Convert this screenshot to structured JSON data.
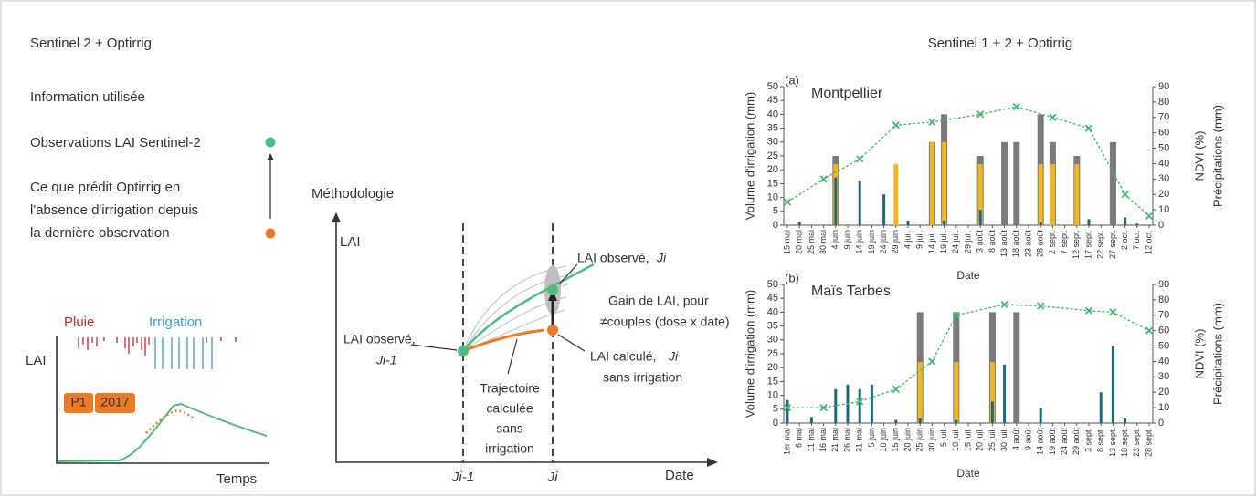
{
  "left": {
    "title": "Sentinel 2 + Optirrig",
    "info": "Information utilisée",
    "obs": "Observations LAI Sentinel-2",
    "pred": [
      "Ce que prédit Optirrig en",
      "l'absence d'irrigation depuis",
      "la dernière observation"
    ],
    "mini": {
      "y_label": "LAI",
      "rain": "Pluie",
      "irrigation": "Irrigation",
      "tags": [
        "P1",
        "2017"
      ],
      "x_label": "Temps"
    }
  },
  "method": {
    "title": "Méthodologie",
    "y_label": "LAI",
    "x_label": "Date",
    "tick_prev": "Ji-1",
    "tick_cur": "Ji",
    "obs_cur": "LAI observé,",
    "obs_cur_var": "Ji",
    "gain": [
      "Gain de LAI, pour",
      "≠couples (dose x date)"
    ],
    "obs_prev": "LAI observé,",
    "obs_prev_var": "Ji-1",
    "traj": [
      "Trajectoire",
      "calculée",
      "sans",
      "irrigation"
    ],
    "calc": "LAI calculé,",
    "calc_var": "Ji",
    "calc2": "sans irrigation"
  },
  "right_title": "Sentinel 1 + 2 + Optirrig",
  "chart_data": [
    {
      "type": "bar",
      "label": "(a)",
      "title": "Montpellier",
      "xlabel": "Date",
      "ylabel": "Volume d'irrigation (mm)",
      "y2label": [
        "NDVI (%)",
        "Précipitations (mm)"
      ],
      "categories": [
        "15 mai",
        "20 mai",
        "25 mai",
        "30 mai",
        "4 juin",
        "9 juin",
        "14 juin",
        "19 juin",
        "24 juin",
        "29 juin",
        "4 juil.",
        "9 juil.",
        "14 juil.",
        "19 juil.",
        "24 juil.",
        "29 juil.",
        "3 août",
        "8 août",
        "13 août",
        "18 août",
        "23 août",
        "28 août",
        "2 sept.",
        "7 sept.",
        "12 sept.",
        "17 sept.",
        "22 sept.",
        "27 sept.",
        "2 oct.",
        "7 oct.",
        "12 oct."
      ],
      "ylim": [
        0,
        50
      ],
      "yticks": [
        0,
        5,
        10,
        15,
        20,
        25,
        30,
        35,
        40,
        45,
        50
      ],
      "y2lim": [
        0,
        90
      ],
      "y2ticks": [
        0,
        10,
        20,
        30,
        40,
        50,
        60,
        70,
        80,
        90
      ],
      "series": [
        {
          "type": "bar",
          "color": "#7a7a7a",
          "x": [
            "4 juin",
            "14 juil.",
            "19 juil.",
            "3 août",
            "13 août",
            "18 août",
            "28 août",
            "2 sept.",
            "12 sept.",
            "27 sept."
          ],
          "values": [
            25,
            30,
            40,
            25,
            30,
            30,
            40,
            30,
            25,
            30
          ]
        },
        {
          "type": "bar",
          "color": "#f2b61f",
          "x": [
            "4 juin",
            "29 juin",
            "14 juil.",
            "19 juil.",
            "3 août",
            "28 août",
            "2 sept.",
            "12 sept."
          ],
          "values": [
            22,
            22,
            30,
            30,
            22,
            22,
            22,
            22
          ]
        },
        {
          "type": "bar",
          "color": "#1d6b7a",
          "axis": "y2",
          "x": [
            "20 mai",
            "4 juin",
            "14 juin",
            "24 juin",
            "4 juil.",
            "19 juil.",
            "3 août",
            "28 août",
            "17 sept.",
            "2 oct.",
            "7 oct."
          ],
          "values": [
            2,
            31,
            29,
            20,
            3,
            3,
            10,
            2,
            4,
            5,
            1
          ]
        },
        {
          "type": "line",
          "color": "#3fba74",
          "axis": "y2",
          "x": [
            "15 mai",
            "30 mai",
            "14 juin",
            "29 juin",
            "14 juil.",
            "3 août",
            "18 août",
            "2 sept.",
            "17 sept.",
            "2 oct.",
            "12 oct."
          ],
          "values": [
            15,
            30,
            43,
            65,
            67,
            72,
            77,
            70,
            63,
            20,
            6
          ]
        }
      ]
    },
    {
      "type": "bar",
      "label": "(b)",
      "title": "Maïs Tarbes",
      "xlabel": "Date",
      "ylabel": "Volume d'irrigation (mm)",
      "y2label": [
        "NDVI (%)",
        "Précipitations (mm)"
      ],
      "categories": [
        "1er mai",
        "6 mai",
        "11 mai",
        "16 mai",
        "21 mai",
        "26 mai",
        "31 mai",
        "5 juin",
        "10 juin",
        "15 juin",
        "20 juin",
        "25 juin",
        "30 juin",
        "5 juil.",
        "10 juil.",
        "15 juil.",
        "20 juil.",
        "25 juil.",
        "30 juil.",
        "4 août",
        "9 août",
        "14 août",
        "19 août",
        "24 août",
        "29 août",
        "3 sept.",
        "8 sept.",
        "13 sept.",
        "18 sept.",
        "23 sept.",
        "28 sept."
      ],
      "ylim": [
        0,
        50
      ],
      "yticks": [
        0,
        5,
        10,
        15,
        20,
        25,
        30,
        35,
        40,
        45,
        50
      ],
      "y2lim": [
        0,
        90
      ],
      "y2ticks": [
        0,
        10,
        20,
        30,
        40,
        50,
        60,
        70,
        80,
        90
      ],
      "series": [
        {
          "type": "bar",
          "color": "#7a7a7a",
          "x": [
            "25 juin",
            "10 juil.",
            "25 juil.",
            "4 août"
          ],
          "values": [
            40,
            40,
            40,
            40
          ]
        },
        {
          "type": "bar",
          "color": "#f2b61f",
          "x": [
            "25 juin",
            "10 juil.",
            "25 juil."
          ],
          "values": [
            22,
            22,
            22
          ]
        },
        {
          "type": "bar",
          "color": "#1d6b7a",
          "axis": "y2",
          "x": [
            "1er mai",
            "11 mai",
            "21 mai",
            "26 mai",
            "31 mai",
            "5 juin",
            "15 juin",
            "25 juin",
            "10 juil.",
            "25 juil.",
            "30 juil.",
            "14 août",
            "8 sept.",
            "13 sept.",
            "18 sept."
          ],
          "values": [
            15,
            4,
            22,
            25,
            22,
            25,
            2,
            3,
            2,
            14,
            38,
            10,
            20,
            50,
            3
          ]
        },
        {
          "type": "line",
          "color": "#3fba74",
          "axis": "y2",
          "x": [
            "1er mai",
            "16 mai",
            "31 mai",
            "15 juin",
            "30 juin",
            "10 juil.",
            "30 juil.",
            "14 août",
            "3 sept.",
            "13 sept.",
            "28 sept."
          ],
          "values": [
            10,
            10,
            14,
            22,
            40,
            70,
            77,
            76,
            73,
            72,
            60
          ]
        }
      ]
    }
  ]
}
